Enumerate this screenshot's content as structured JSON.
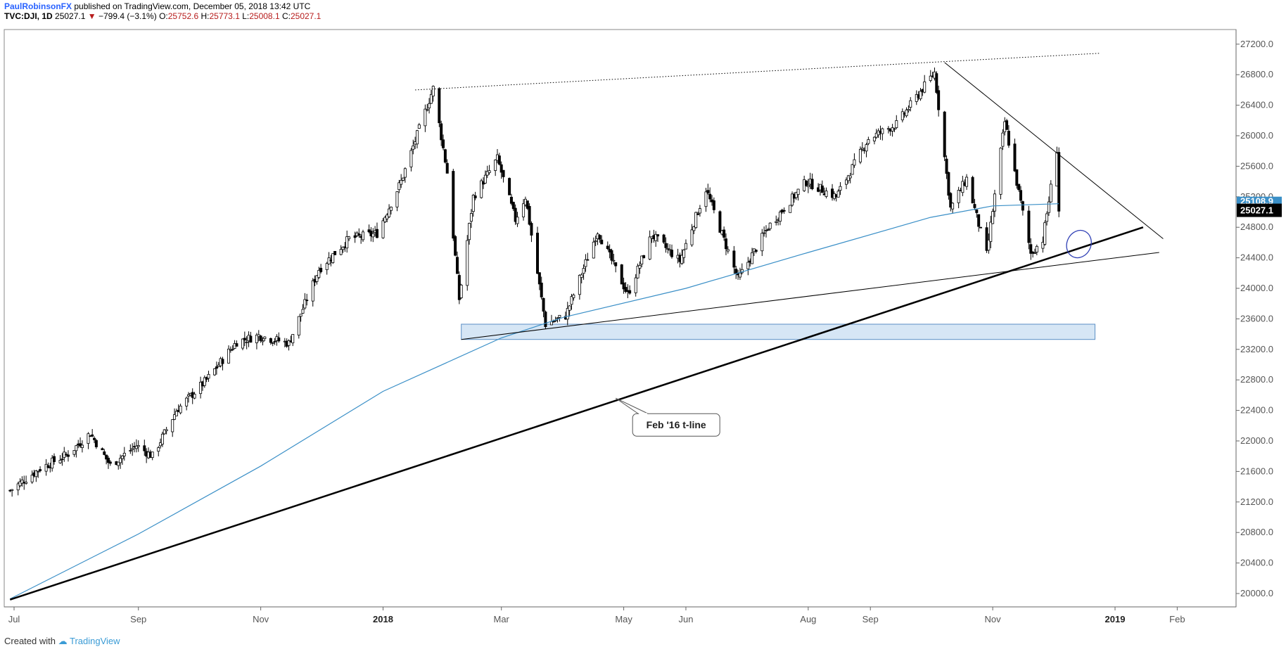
{
  "header": {
    "publisher": "PaulRobinsonFX",
    "published_text": "published on TradingView.com, December 05, 2018 13:42 UTC",
    "symbol": "TVC:DJI, 1D",
    "last": "25027.1",
    "change": "−799.4 (−3.1%)",
    "o_label": "O:",
    "o_val": "25752.6",
    "h_label": "H:",
    "h_val": "25773.1",
    "l_label": "L:",
    "l_val": "25008.1",
    "c_label": "C:",
    "c_val": "25027.1"
  },
  "footer": {
    "created_with": "Created with",
    "brand": "TradingView"
  },
  "colors": {
    "ma_line": "#3a8fc7",
    "zone_fill": "#cfe2f3",
    "zone_stroke": "#5b8fc5",
    "ellipse": "#2f3fb5",
    "last_price_bg": "#000000",
    "ma_label_bg": "#3a8fc7"
  },
  "chart_data": {
    "type": "candlestick",
    "symbol": "TVC:DJI",
    "interval": "1D",
    "date_range": [
      "2017-06-29",
      "2018-12-04"
    ],
    "ylim": [
      19850,
      27450
    ],
    "y_ticks": [
      "27200.0",
      "26800.0",
      "26400.0",
      "26000.0",
      "25600.0",
      "25200.0",
      "24800.0",
      "24400.0",
      "24000.0",
      "23600.0",
      "23200.0",
      "22800.0",
      "22400.0",
      "22000.0",
      "21600.0",
      "21200.0",
      "20800.0",
      "20400.0",
      "20000.0"
    ],
    "x_ticks": [
      {
        "label": "Jul",
        "date": "2017-07-01",
        "bold": false
      },
      {
        "label": "Sep",
        "date": "2017-09-01",
        "bold": false
      },
      {
        "label": "Nov",
        "date": "2017-11-01",
        "bold": false
      },
      {
        "label": "2018",
        "date": "2018-01-01",
        "bold": true
      },
      {
        "label": "Mar",
        "date": "2018-03-01",
        "bold": false
      },
      {
        "label": "May",
        "date": "2018-05-01",
        "bold": false
      },
      {
        "label": "Jun",
        "date": "2018-06-01",
        "bold": false
      },
      {
        "label": "Aug",
        "date": "2018-08-01",
        "bold": false
      },
      {
        "label": "Sep",
        "date": "2018-09-01",
        "bold": false
      },
      {
        "label": "Nov",
        "date": "2018-11-01",
        "bold": false
      },
      {
        "label": "2019",
        "date": "2019-01-01",
        "bold": true
      },
      {
        "label": "Feb",
        "date": "2019-02-01",
        "bold": false
      }
    ],
    "last_price_label": "25027.1",
    "ma_label": "25108.9",
    "price_path": [
      {
        "date": "2017-06-29",
        "close": 21350
      },
      {
        "date": "2017-07-14",
        "close": 21640
      },
      {
        "date": "2017-07-28",
        "close": 21830
      },
      {
        "date": "2017-08-08",
        "close": 22100
      },
      {
        "date": "2017-08-18",
        "close": 21680
      },
      {
        "date": "2017-08-31",
        "close": 21940
      },
      {
        "date": "2017-09-08",
        "close": 21800
      },
      {
        "date": "2017-09-20",
        "close": 22400
      },
      {
        "date": "2017-10-05",
        "close": 22800
      },
      {
        "date": "2017-10-20",
        "close": 23300
      },
      {
        "date": "2017-10-31",
        "close": 23380
      },
      {
        "date": "2017-11-15",
        "close": 23280
      },
      {
        "date": "2017-11-30",
        "close": 24250
      },
      {
        "date": "2017-12-15",
        "close": 24650
      },
      {
        "date": "2017-12-29",
        "close": 24720
      },
      {
        "date": "2018-01-10",
        "close": 25400
      },
      {
        "date": "2018-01-26",
        "close": 26620
      },
      {
        "date": "2018-02-02",
        "close": 25520
      },
      {
        "date": "2018-02-08",
        "close": 23860
      },
      {
        "date": "2018-02-15",
        "close": 25200
      },
      {
        "date": "2018-02-27",
        "close": 25700
      },
      {
        "date": "2018-03-08",
        "close": 24900
      },
      {
        "date": "2018-03-13",
        "close": 25200
      },
      {
        "date": "2018-03-23",
        "close": 23530
      },
      {
        "date": "2018-04-02",
        "close": 23640
      },
      {
        "date": "2018-04-18",
        "close": 24750
      },
      {
        "date": "2018-05-03",
        "close": 23920
      },
      {
        "date": "2018-05-15",
        "close": 24700
      },
      {
        "date": "2018-05-29",
        "close": 24360
      },
      {
        "date": "2018-06-11",
        "close": 25300
      },
      {
        "date": "2018-06-27",
        "close": 24120
      },
      {
        "date": "2018-07-12",
        "close": 24800
      },
      {
        "date": "2018-07-31",
        "close": 25400
      },
      {
        "date": "2018-08-15",
        "close": 25200
      },
      {
        "date": "2018-08-31",
        "close": 25960
      },
      {
        "date": "2018-09-14",
        "close": 26150
      },
      {
        "date": "2018-10-03",
        "close": 26830
      },
      {
        "date": "2018-10-11",
        "close": 25050
      },
      {
        "date": "2018-10-19",
        "close": 25440
      },
      {
        "date": "2018-10-29",
        "close": 24440
      },
      {
        "date": "2018-11-07",
        "close": 26180
      },
      {
        "date": "2018-11-20",
        "close": 24460
      },
      {
        "date": "2018-11-26",
        "close": 24640
      },
      {
        "date": "2018-12-03",
        "close": 25830
      },
      {
        "date": "2018-12-04",
        "close": 25027
      }
    ],
    "moving_average": [
      {
        "date": "2017-06-29",
        "value": 19930
      },
      {
        "date": "2017-09-01",
        "value": 20780
      },
      {
        "date": "2017-11-01",
        "value": 21670
      },
      {
        "date": "2018-01-01",
        "value": 22650
      },
      {
        "date": "2018-03-01",
        "value": 23350
      },
      {
        "date": "2018-04-01",
        "value": 23620
      },
      {
        "date": "2018-06-01",
        "value": 24000
      },
      {
        "date": "2018-08-01",
        "value": 24470
      },
      {
        "date": "2018-10-01",
        "value": 24930
      },
      {
        "date": "2018-11-01",
        "value": 25080
      },
      {
        "date": "2018-12-04",
        "value": 25108.9
      }
    ],
    "trendlines": [
      {
        "name": "feb16-tline",
        "style": "thick",
        "from": {
          "date": "2017-06-29",
          "price": 19920
        },
        "to": {
          "date": "2019-01-15",
          "price": 24800
        }
      },
      {
        "name": "upper-dotted",
        "style": "dotted",
        "from": {
          "date": "2018-01-17",
          "price": 26600
        },
        "to": {
          "date": "2018-12-24",
          "price": 27080
        }
      },
      {
        "name": "descending",
        "style": "thin",
        "from": {
          "date": "2018-10-08",
          "price": 26960
        },
        "to": {
          "date": "2019-01-25",
          "price": 24650
        }
      },
      {
        "name": "lower-support",
        "style": "thin",
        "from": {
          "date": "2018-02-09",
          "price": 23330
        },
        "to": {
          "date": "2019-01-23",
          "price": 24470
        }
      }
    ],
    "zone": {
      "from": "2018-02-09",
      "to": "2018-12-22",
      "low": 23330,
      "high": 23530
    },
    "annotation": {
      "text": "Feb '16 t-line",
      "anchor": {
        "date": "2018-04-27",
        "price": 22560
      }
    },
    "ellipse": {
      "date": "2018-12-14",
      "price": 24580
    }
  }
}
